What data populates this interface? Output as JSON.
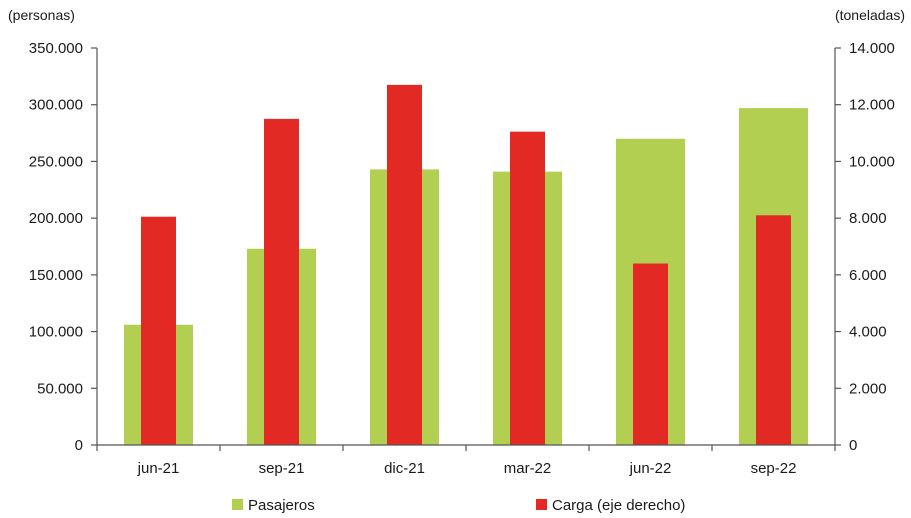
{
  "chart_data": {
    "type": "bar",
    "categories": [
      "jun-21",
      "sep-21",
      "dic-21",
      "mar-22",
      "jun-22",
      "sep-22"
    ],
    "series": [
      {
        "name": "Pasajeros",
        "axis": "left",
        "color": "#b2cf52",
        "values": [
          106000,
          173000,
          243000,
          241000,
          270000,
          297000
        ]
      },
      {
        "name": "Carga (eje derecho)",
        "axis": "right",
        "color": "#e32924",
        "values": [
          8050,
          11500,
          12700,
          11050,
          6400,
          8100
        ]
      }
    ],
    "y_left": {
      "unit_label": "(personas)",
      "range": [
        0,
        350000
      ],
      "ticks": [
        0,
        50000,
        100000,
        150000,
        200000,
        250000,
        300000,
        350000
      ],
      "tick_labels": [
        "0",
        "50.000",
        "100.000",
        "150.000",
        "200.000",
        "250.000",
        "300.000",
        "350.000"
      ]
    },
    "y_right": {
      "unit_label": "(toneladas)",
      "range": [
        0,
        14000
      ],
      "ticks": [
        0,
        2000,
        4000,
        6000,
        8000,
        10000,
        12000,
        14000
      ],
      "tick_labels": [
        "0",
        "2.000",
        "4.000",
        "6.000",
        "8.000",
        "10.000",
        "12.000",
        "14.000"
      ]
    },
    "grid": false,
    "legend_position": "bottom"
  }
}
